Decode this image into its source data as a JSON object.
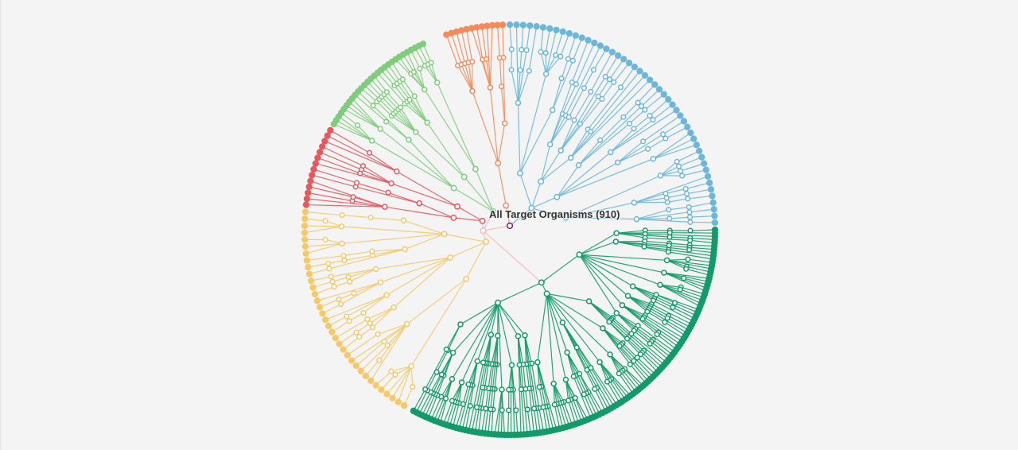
{
  "tree": {
    "root_label": "All Target Organisms (910)",
    "root_color": "#7b1f74",
    "branches": [
      {
        "key": "orange",
        "color": "#f58a5a",
        "leaf_count": 12
      },
      {
        "key": "blue",
        "color": "#6cb7d9",
        "leaf_count": 48
      },
      {
        "key": "green",
        "color": "#139a6a",
        "leaf_count": 130
      },
      {
        "key": "yellow",
        "color": "#f5c96a",
        "leaf_count": 34
      },
      {
        "key": "red",
        "color": "#e6585e",
        "leaf_count": 14
      },
      {
        "key": "lightgreen",
        "color": "#7fcd7c",
        "leaf_count": 28
      }
    ]
  }
}
